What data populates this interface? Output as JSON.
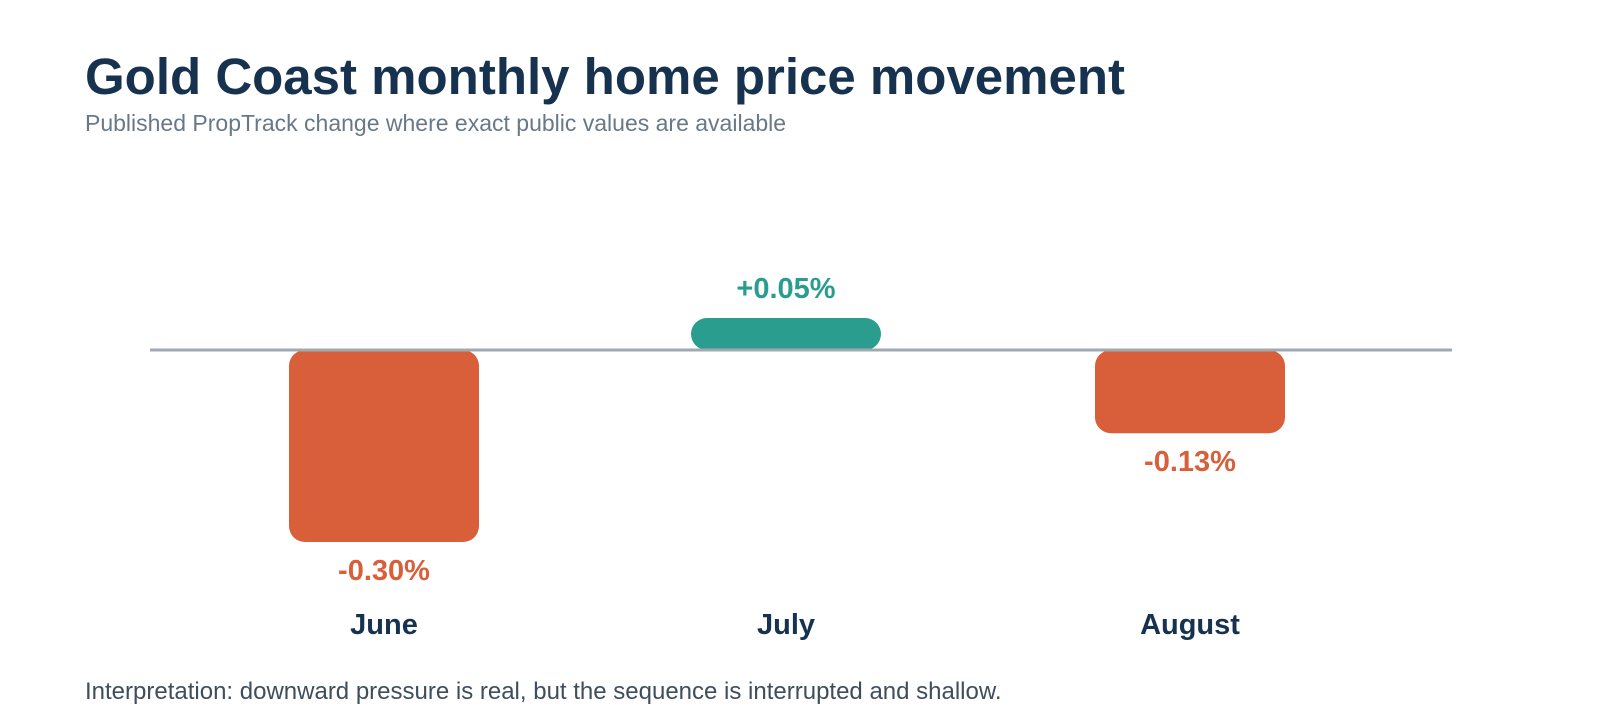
{
  "chart_data": {
    "type": "bar",
    "title": "Gold Coast monthly home price movement",
    "subtitle": "Published PropTrack change where exact public values are available",
    "categories": [
      "June",
      "July",
      "August"
    ],
    "values": [
      -0.3,
      0.05,
      -0.13
    ],
    "value_labels": [
      "-0.30%",
      "+0.05%",
      "-0.13%"
    ],
    "xlabel": "",
    "ylabel": "",
    "ylim": [
      -0.33,
      0.05
    ],
    "grid": false,
    "legend": "none",
    "colors": {
      "positive": "#2a9d8f",
      "negative": "#d95f3a",
      "baseline": "#a1a9b0"
    }
  },
  "footer": {
    "note": "Interpretation: downward pressure is real, but the sequence is interrupted and shallow."
  }
}
